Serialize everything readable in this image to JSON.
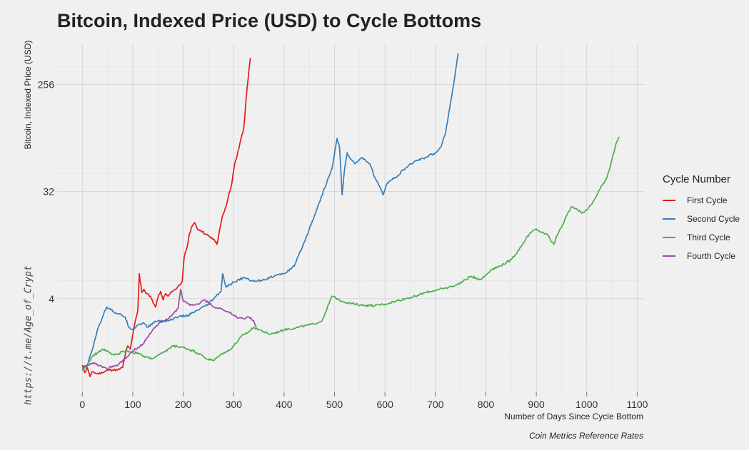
{
  "chart_data": {
    "type": "line",
    "title": "Bitcoin, Indexed Price (USD) to Cycle Bottoms",
    "xlabel": "Number of Days Since Cycle Bottom",
    "ylabel": "Bitcoin, Indexed Price (USD)",
    "caption": "Coin Metrics Reference Rates",
    "watermark": "https://t.me/Age_of_Crypt",
    "legend_title": "Cycle Number",
    "legend_position": "right",
    "grid": true,
    "y_scale": "log2",
    "xlim": [
      -50,
      1115
    ],
    "ylim": [
      0.65,
      560
    ],
    "x_ticks": [
      0,
      100,
      200,
      300,
      400,
      500,
      600,
      700,
      800,
      900,
      1000,
      1100
    ],
    "y_ticks": [
      4,
      32,
      256
    ],
    "series": [
      {
        "name": "First Cycle",
        "color": "#e41a1c",
        "points": [
          [
            0,
            1.1
          ],
          [
            5,
            0.95
          ],
          [
            10,
            1.05
          ],
          [
            15,
            0.88
          ],
          [
            20,
            0.97
          ],
          [
            30,
            0.93
          ],
          [
            40,
            0.95
          ],
          [
            50,
            1.0
          ],
          [
            60,
            1.0
          ],
          [
            70,
            1.0
          ],
          [
            80,
            1.05
          ],
          [
            85,
            1.35
          ],
          [
            90,
            1.6
          ],
          [
            95,
            1.5
          ],
          [
            100,
            2.0
          ],
          [
            105,
            2.6
          ],
          [
            110,
            3.2
          ],
          [
            113,
            6.5
          ],
          [
            118,
            4.5
          ],
          [
            122,
            4.8
          ],
          [
            128,
            4.4
          ],
          [
            135,
            4.2
          ],
          [
            140,
            3.7
          ],
          [
            145,
            3.4
          ],
          [
            150,
            4.1
          ],
          [
            155,
            4.6
          ],
          [
            160,
            3.9
          ],
          [
            165,
            4.4
          ],
          [
            170,
            4.2
          ],
          [
            178,
            4.6
          ],
          [
            185,
            4.8
          ],
          [
            192,
            5.2
          ],
          [
            198,
            5.6
          ],
          [
            202,
            9.0
          ],
          [
            208,
            11.0
          ],
          [
            212,
            14.0
          ],
          [
            218,
            16.5
          ],
          [
            222,
            17.5
          ],
          [
            228,
            15.5
          ],
          [
            235,
            15.0
          ],
          [
            245,
            14.0
          ],
          [
            255,
            13.0
          ],
          [
            262,
            12.5
          ],
          [
            267,
            11.5
          ],
          [
            270,
            13.5
          ],
          [
            278,
            20.0
          ],
          [
            285,
            24.0
          ],
          [
            290,
            30.0
          ],
          [
            295,
            35.0
          ],
          [
            302,
            55.0
          ],
          [
            305,
            60.0
          ],
          [
            312,
            80.0
          ],
          [
            316,
            95.0
          ],
          [
            320,
            110.0
          ],
          [
            325,
            200.0
          ],
          [
            330,
            330.0
          ],
          [
            333,
            430.0
          ]
        ]
      },
      {
        "name": "Second Cycle",
        "color": "#377eb8",
        "points": [
          [
            0,
            1.0
          ],
          [
            10,
            1.1
          ],
          [
            20,
            1.5
          ],
          [
            30,
            2.2
          ],
          [
            40,
            2.8
          ],
          [
            48,
            3.4
          ],
          [
            55,
            3.3
          ],
          [
            62,
            3.1
          ],
          [
            70,
            3.0
          ],
          [
            78,
            2.9
          ],
          [
            85,
            2.8
          ],
          [
            92,
            2.3
          ],
          [
            100,
            2.2
          ],
          [
            110,
            2.4
          ],
          [
            120,
            2.5
          ],
          [
            130,
            2.3
          ],
          [
            140,
            2.5
          ],
          [
            150,
            2.6
          ],
          [
            170,
            2.6
          ],
          [
            190,
            2.8
          ],
          [
            210,
            2.9
          ],
          [
            230,
            3.2
          ],
          [
            250,
            3.6
          ],
          [
            265,
            4.2
          ],
          [
            275,
            4.6
          ],
          [
            278,
            6.5
          ],
          [
            285,
            5.0
          ],
          [
            300,
            5.5
          ],
          [
            320,
            6.0
          ],
          [
            340,
            5.6
          ],
          [
            360,
            5.8
          ],
          [
            380,
            6.2
          ],
          [
            400,
            6.5
          ],
          [
            420,
            7.5
          ],
          [
            440,
            12.0
          ],
          [
            460,
            20.0
          ],
          [
            480,
            34.0
          ],
          [
            495,
            50.0
          ],
          [
            505,
            90.0
          ],
          [
            510,
            75.0
          ],
          [
            515,
            30.0
          ],
          [
            520,
            50.0
          ],
          [
            525,
            68.0
          ],
          [
            530,
            62.0
          ],
          [
            540,
            55.0
          ],
          [
            555,
            62.0
          ],
          [
            570,
            55.0
          ],
          [
            580,
            42.0
          ],
          [
            590,
            35.0
          ],
          [
            596,
            30.0
          ],
          [
            605,
            38.0
          ],
          [
            620,
            42.0
          ],
          [
            640,
            50.0
          ],
          [
            660,
            58.0
          ],
          [
            680,
            62.0
          ],
          [
            700,
            68.0
          ],
          [
            710,
            75.0
          ],
          [
            720,
            100.0
          ],
          [
            730,
            180.0
          ],
          [
            738,
            290.0
          ],
          [
            745,
            470.0
          ]
        ]
      },
      {
        "name": "Third Cycle",
        "color": "#4daf4a",
        "points": [
          [
            0,
            1.0
          ],
          [
            10,
            1.1
          ],
          [
            20,
            1.3
          ],
          [
            30,
            1.4
          ],
          [
            40,
            1.5
          ],
          [
            50,
            1.45
          ],
          [
            60,
            1.35
          ],
          [
            70,
            1.35
          ],
          [
            80,
            1.45
          ],
          [
            90,
            1.45
          ],
          [
            100,
            1.4
          ],
          [
            110,
            1.4
          ],
          [
            120,
            1.3
          ],
          [
            140,
            1.25
          ],
          [
            160,
            1.4
          ],
          [
            180,
            1.6
          ],
          [
            200,
            1.55
          ],
          [
            220,
            1.45
          ],
          [
            235,
            1.35
          ],
          [
            245,
            1.25
          ],
          [
            260,
            1.2
          ],
          [
            270,
            1.3
          ],
          [
            280,
            1.4
          ],
          [
            290,
            1.45
          ],
          [
            300,
            1.6
          ],
          [
            310,
            1.8
          ],
          [
            320,
            2.0
          ],
          [
            330,
            2.1
          ],
          [
            340,
            2.3
          ],
          [
            350,
            2.2
          ],
          [
            360,
            2.1
          ],
          [
            370,
            2.0
          ],
          [
            380,
            2.05
          ],
          [
            390,
            2.1
          ],
          [
            400,
            2.2
          ],
          [
            420,
            2.25
          ],
          [
            440,
            2.35
          ],
          [
            460,
            2.45
          ],
          [
            475,
            2.6
          ],
          [
            485,
            3.3
          ],
          [
            495,
            4.2
          ],
          [
            510,
            3.9
          ],
          [
            525,
            3.7
          ],
          [
            540,
            3.6
          ],
          [
            560,
            3.5
          ],
          [
            580,
            3.5
          ],
          [
            600,
            3.6
          ],
          [
            620,
            3.8
          ],
          [
            640,
            4.0
          ],
          [
            660,
            4.2
          ],
          [
            680,
            4.5
          ],
          [
            700,
            4.7
          ],
          [
            720,
            4.9
          ],
          [
            740,
            5.2
          ],
          [
            755,
            5.6
          ],
          [
            770,
            6.2
          ],
          [
            780,
            6.0
          ],
          [
            790,
            5.8
          ],
          [
            800,
            6.3
          ],
          [
            810,
            7.0
          ],
          [
            830,
            7.6
          ],
          [
            850,
            8.5
          ],
          [
            870,
            11.0
          ],
          [
            880,
            13.0
          ],
          [
            890,
            14.5
          ],
          [
            900,
            15.5
          ],
          [
            910,
            14.5
          ],
          [
            920,
            14.0
          ],
          [
            925,
            13.5
          ],
          [
            930,
            12.0
          ],
          [
            935,
            11.5
          ],
          [
            940,
            13.5
          ],
          [
            950,
            16.0
          ],
          [
            960,
            20.0
          ],
          [
            970,
            24.0
          ],
          [
            980,
            23.0
          ],
          [
            990,
            21.0
          ],
          [
            1000,
            22.5
          ],
          [
            1010,
            25.0
          ],
          [
            1020,
            30.0
          ],
          [
            1030,
            36.0
          ],
          [
            1040,
            42.0
          ],
          [
            1050,
            60.0
          ],
          [
            1060,
            85.0
          ],
          [
            1065,
            92.0
          ]
        ]
      },
      {
        "name": "Fourth Cycle",
        "color": "#984ea3",
        "points": [
          [
            0,
            1.05
          ],
          [
            10,
            1.1
          ],
          [
            20,
            1.15
          ],
          [
            30,
            1.1
          ],
          [
            40,
            1.05
          ],
          [
            50,
            1.02
          ],
          [
            60,
            1.08
          ],
          [
            70,
            1.1
          ],
          [
            80,
            1.2
          ],
          [
            90,
            1.3
          ],
          [
            100,
            1.45
          ],
          [
            110,
            1.55
          ],
          [
            120,
            1.65
          ],
          [
            130,
            1.9
          ],
          [
            140,
            2.2
          ],
          [
            150,
            2.4
          ],
          [
            160,
            2.6
          ],
          [
            170,
            2.7
          ],
          [
            180,
            3.0
          ],
          [
            190,
            3.3
          ],
          [
            195,
            4.8
          ],
          [
            200,
            3.8
          ],
          [
            210,
            3.6
          ],
          [
            220,
            3.5
          ],
          [
            230,
            3.6
          ],
          [
            240,
            3.9
          ],
          [
            250,
            3.7
          ],
          [
            260,
            3.4
          ],
          [
            270,
            3.3
          ],
          [
            280,
            3.2
          ],
          [
            290,
            3.1
          ],
          [
            300,
            2.9
          ],
          [
            310,
            2.75
          ],
          [
            320,
            2.7
          ],
          [
            330,
            2.8
          ],
          [
            340,
            2.6
          ],
          [
            345,
            2.3
          ]
        ]
      }
    ]
  }
}
